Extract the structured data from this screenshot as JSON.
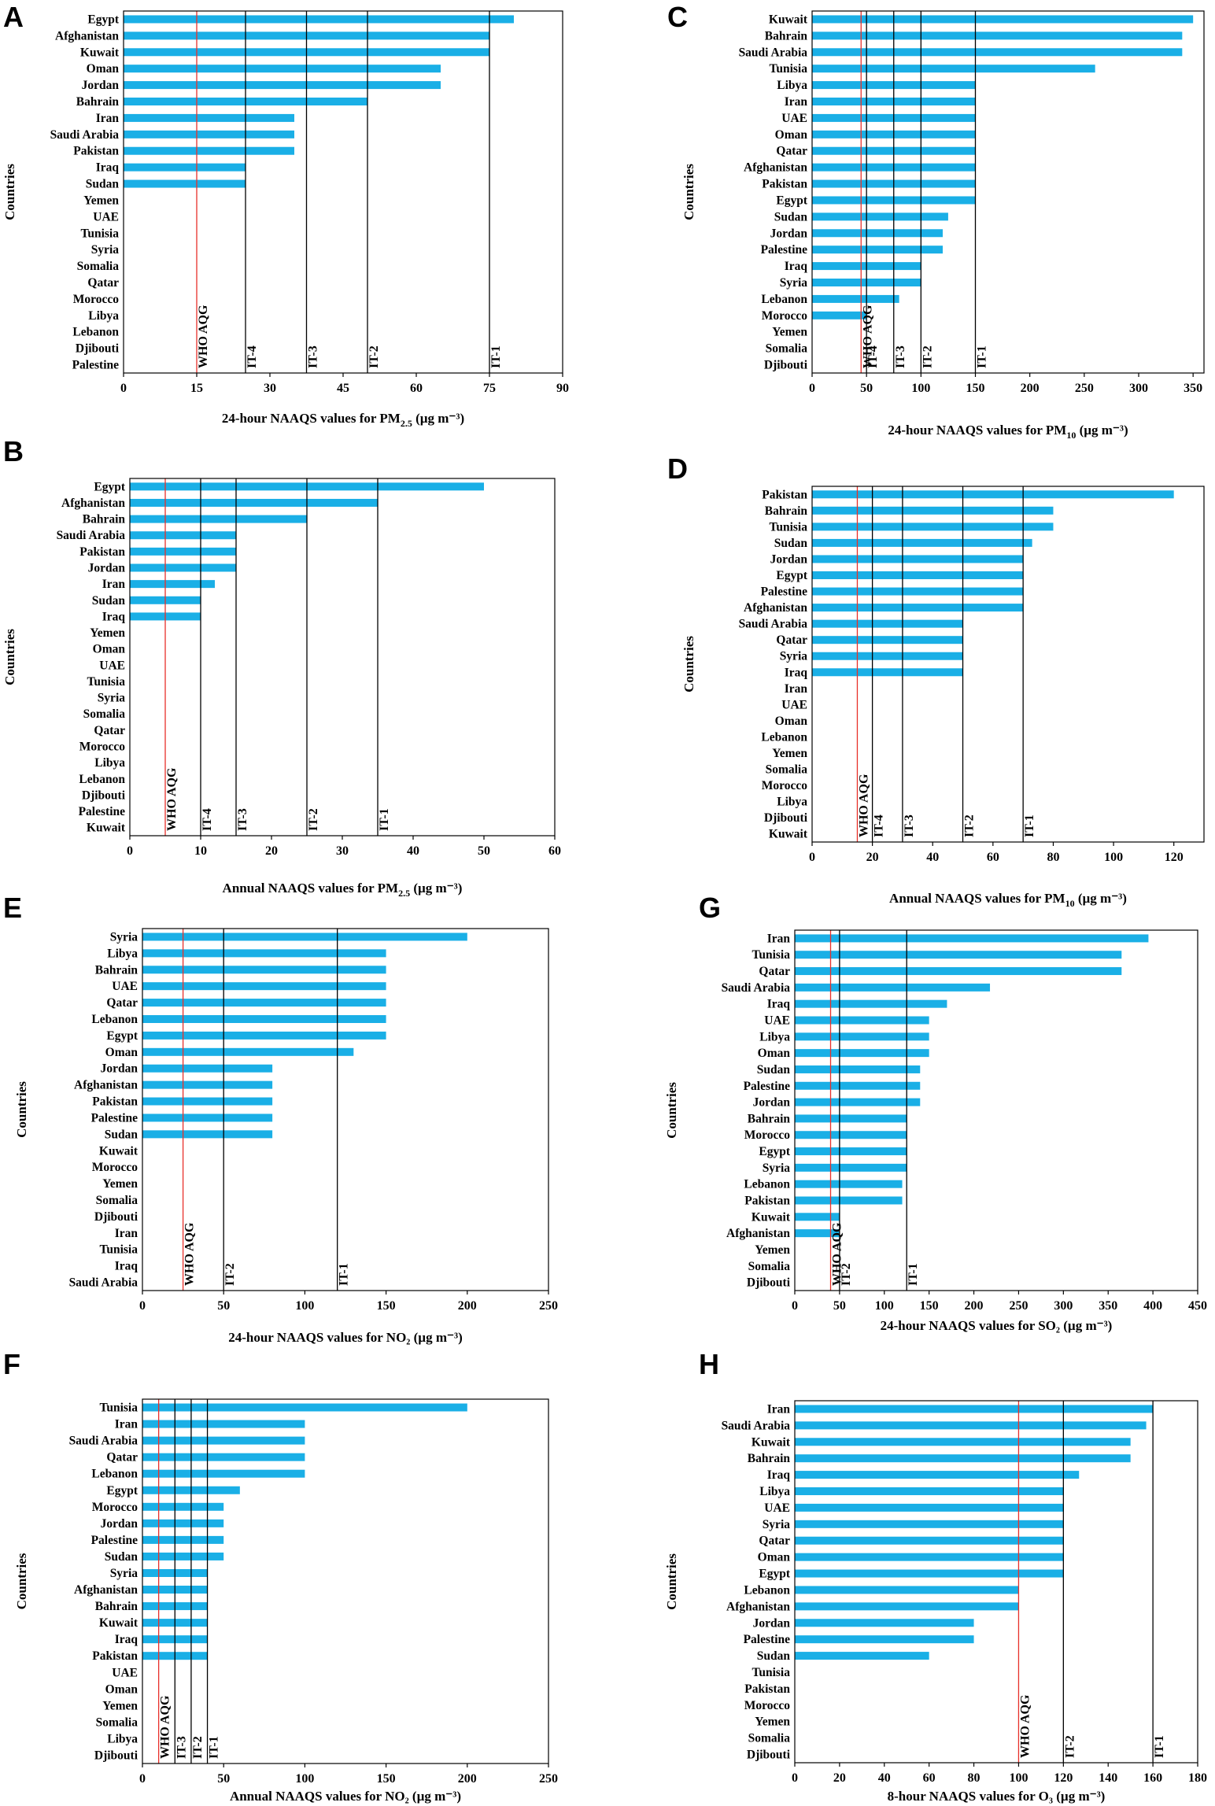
{
  "colors": {
    "bar": "#1AAFE6",
    "who_line": "#E8302A",
    "it_line": "#000000",
    "axis": "#000000"
  },
  "chart_data": [
    {
      "id": "A",
      "type": "bar",
      "orientation": "horizontal",
      "categories": [
        "Egypt",
        "Afghanistan",
        "Kuwait",
        "Oman",
        "Jordan",
        "Bahrain",
        "Iran",
        "Saudi Arabia",
        "Pakistan",
        "Iraq",
        "Sudan",
        "Yemen",
        "UAE",
        "Tunisia",
        "Syria",
        "Somalia",
        "Qatar",
        "Morocco",
        "Libya",
        "Lebanon",
        "Djibouti",
        "Palestine"
      ],
      "values": [
        80,
        75,
        75,
        65,
        65,
        50,
        35,
        35,
        35,
        25,
        25,
        0,
        0,
        0,
        0,
        0,
        0,
        0,
        0,
        0,
        0,
        0
      ],
      "xlim": [
        0,
        90
      ],
      "xticks": [
        0,
        15,
        30,
        45,
        60,
        75,
        90
      ],
      "xlabel": {
        "main": "24-hour NAAQS values for PM",
        "sub": "2.5",
        "unit": " (µg m⁻³)"
      },
      "ylabel": "Countries",
      "references": [
        {
          "label": "WHO AQG",
          "value": 15,
          "kind": "who"
        },
        {
          "label": "IT-4",
          "value": 25,
          "kind": "it"
        },
        {
          "label": "IT-3",
          "value": 37.5,
          "kind": "it"
        },
        {
          "label": "IT-2",
          "value": 50,
          "kind": "it"
        },
        {
          "label": "IT-1",
          "value": 75,
          "kind": "it"
        }
      ]
    },
    {
      "id": "C",
      "type": "bar",
      "orientation": "horizontal",
      "categories": [
        "Kuwait",
        "Bahrain",
        "Saudi Arabia",
        "Tunisia",
        "Libya",
        "Iran",
        "UAE",
        "Oman",
        "Qatar",
        "Afghanistan",
        "Pakistan",
        "Egypt",
        "Sudan",
        "Jordan",
        "Palestine",
        "Iraq",
        "Syria",
        "Lebanon",
        "Morocco",
        "Yemen",
        "Somalia",
        "Djibouti"
      ],
      "values": [
        350,
        340,
        340,
        260,
        150,
        150,
        150,
        150,
        150,
        150,
        150,
        150,
        125,
        120,
        120,
        100,
        100,
        80,
        50,
        0,
        0,
        0
      ],
      "xlim": [
        0,
        360
      ],
      "xticks": [
        0,
        50,
        100,
        150,
        200,
        250,
        300,
        350
      ],
      "xlabel": {
        "main": "24-hour NAAQS values for PM",
        "sub": "10",
        "unit": " (µg m⁻³)"
      },
      "ylabel": "Countries",
      "references": [
        {
          "label": "WHO AQG",
          "value": 45,
          "kind": "who"
        },
        {
          "label": "IT-4",
          "value": 50,
          "kind": "it"
        },
        {
          "label": "IT-3",
          "value": 75,
          "kind": "it"
        },
        {
          "label": "IT-2",
          "value": 100,
          "kind": "it"
        },
        {
          "label": "IT-1",
          "value": 150,
          "kind": "it"
        }
      ]
    },
    {
      "id": "B",
      "type": "bar",
      "orientation": "horizontal",
      "categories": [
        "Egypt",
        "Afghanistan",
        "Bahrain",
        "Saudi Arabia",
        "Pakistan",
        "Jordan",
        "Iran",
        "Sudan",
        "Iraq",
        "Yemen",
        "Oman",
        "UAE",
        "Tunisia",
        "Syria",
        "Somalia",
        "Qatar",
        "Morocco",
        "Libya",
        "Lebanon",
        "Djibouti",
        "Palestine",
        "Kuwait"
      ],
      "values": [
        50,
        35,
        25,
        15,
        15,
        15,
        12,
        10,
        10,
        0,
        0,
        0,
        0,
        0,
        0,
        0,
        0,
        0,
        0,
        0,
        0,
        0
      ],
      "xlim": [
        0,
        60
      ],
      "xticks": [
        0,
        10,
        20,
        30,
        40,
        50,
        60
      ],
      "xlabel": {
        "main": "Annual NAAQS values for PM",
        "sub": "2.5",
        "unit": " (µg m⁻³)"
      },
      "ylabel": "Countries",
      "references": [
        {
          "label": "WHO AQG",
          "value": 5,
          "kind": "who"
        },
        {
          "label": "IT-4",
          "value": 10,
          "kind": "it"
        },
        {
          "label": "IT-3",
          "value": 15,
          "kind": "it"
        },
        {
          "label": "IT-2",
          "value": 25,
          "kind": "it"
        },
        {
          "label": "IT-1",
          "value": 35,
          "kind": "it"
        }
      ]
    },
    {
      "id": "D",
      "type": "bar",
      "orientation": "horizontal",
      "categories": [
        "Pakistan",
        "Bahrain",
        "Tunisia",
        "Sudan",
        "Jordan",
        "Egypt",
        "Palestine",
        "Afghanistan",
        "Saudi Arabia",
        "Qatar",
        "Syria",
        "Iraq",
        "Iran",
        "UAE",
        "Oman",
        "Lebanon",
        "Yemen",
        "Somalia",
        "Morocco",
        "Libya",
        "Djibouti",
        "Kuwait"
      ],
      "values": [
        120,
        80,
        80,
        73,
        70,
        70,
        70,
        70,
        50,
        50,
        50,
        50,
        0,
        0,
        0,
        0,
        0,
        0,
        0,
        0,
        0,
        0
      ],
      "xlim": [
        0,
        130
      ],
      "xticks": [
        0,
        20,
        40,
        60,
        80,
        100,
        120
      ],
      "xlabel": {
        "main": "Annual NAAQS values for PM",
        "sub": "10",
        "unit": " (µg m⁻³)"
      },
      "ylabel": "Countries",
      "references": [
        {
          "label": "WHO AQG",
          "value": 15,
          "kind": "who"
        },
        {
          "label": "IT-4",
          "value": 20,
          "kind": "it"
        },
        {
          "label": "IT-3",
          "value": 30,
          "kind": "it"
        },
        {
          "label": "IT-2",
          "value": 50,
          "kind": "it"
        },
        {
          "label": "IT-1",
          "value": 70,
          "kind": "it"
        }
      ]
    },
    {
      "id": "E",
      "type": "bar",
      "orientation": "horizontal",
      "categories": [
        "Syria",
        "Libya",
        "Bahrain",
        "UAE",
        "Qatar",
        "Lebanon",
        "Egypt",
        "Oman",
        "Jordan",
        "Afghanistan",
        "Pakistan",
        "Palestine",
        "Sudan",
        "Kuwait",
        "Morocco",
        "Yemen",
        "Somalia",
        "Djibouti",
        "Iran",
        "Tunisia",
        "Iraq",
        "Saudi Arabia"
      ],
      "values": [
        200,
        150,
        150,
        150,
        150,
        150,
        150,
        130,
        80,
        80,
        80,
        80,
        80,
        0,
        0,
        0,
        0,
        0,
        0,
        0,
        0,
        0
      ],
      "xlim": [
        0,
        250
      ],
      "xticks": [
        0,
        50,
        100,
        150,
        200,
        250
      ],
      "xlabel": {
        "main": "24-hour NAAQS values for NO₂",
        "sub": "",
        "unit": " (µg m⁻³)"
      },
      "ylabel": "Countries",
      "references": [
        {
          "label": "WHO AQG",
          "value": 25,
          "kind": "who"
        },
        {
          "label": "IT-2",
          "value": 50,
          "kind": "it"
        },
        {
          "label": "IT-1",
          "value": 120,
          "kind": "it"
        }
      ]
    },
    {
      "id": "G",
      "type": "bar",
      "orientation": "horizontal",
      "categories": [
        "Iran",
        "Tunisia",
        "Qatar",
        "Saudi Arabia",
        "Iraq",
        "UAE",
        "Libya",
        "Oman",
        "Sudan",
        "Palestine",
        "Jordan",
        "Bahrain",
        "Morocco",
        "Egypt",
        "Syria",
        "Lebanon",
        "Pakistan",
        "Kuwait",
        "Afghanistan",
        "Yemen",
        "Somalia",
        "Djibouti"
      ],
      "values": [
        395,
        365,
        365,
        218,
        170,
        150,
        150,
        150,
        140,
        140,
        140,
        125,
        125,
        125,
        125,
        120,
        120,
        50,
        50,
        0,
        0,
        0
      ],
      "xlim": [
        0,
        450
      ],
      "xticks": [
        0,
        50,
        100,
        150,
        200,
        250,
        300,
        350,
        400,
        450
      ],
      "xlabel": {
        "main": "24-hour NAAQS values for SO₂",
        "sub": "",
        "unit": " (µg m⁻³)"
      },
      "ylabel": "Countries",
      "references": [
        {
          "label": "WHO AQG",
          "value": 40,
          "kind": "who"
        },
        {
          "label": "IT-2",
          "value": 50,
          "kind": "it"
        },
        {
          "label": "IT-1",
          "value": 125,
          "kind": "it"
        }
      ]
    },
    {
      "id": "F",
      "type": "bar",
      "orientation": "horizontal",
      "categories": [
        "Tunisia",
        "Iran",
        "Saudi Arabia",
        "Qatar",
        "Lebanon",
        "Egypt",
        "Morocco",
        "Jordan",
        "Palestine",
        "Sudan",
        "Syria",
        "Afghanistan",
        "Bahrain",
        "Kuwait",
        "Iraq",
        "Pakistan",
        "UAE",
        "Oman",
        "Yemen",
        "Somalia",
        "Libya",
        "Djibouti"
      ],
      "values": [
        200,
        100,
        100,
        100,
        100,
        60,
        50,
        50,
        50,
        50,
        40,
        40,
        40,
        40,
        40,
        40,
        0,
        0,
        0,
        0,
        0,
        0
      ],
      "xlim": [
        0,
        250
      ],
      "xticks": [
        0,
        50,
        100,
        150,
        200,
        250
      ],
      "xlabel": {
        "main": "Annual NAAQS values for NO₂",
        "sub": "",
        "unit": " (µg m⁻³)"
      },
      "ylabel": "Countries",
      "references": [
        {
          "label": "WHO AQG",
          "value": 10,
          "kind": "who"
        },
        {
          "label": "IT-3",
          "value": 20,
          "kind": "it"
        },
        {
          "label": "IT-2",
          "value": 30,
          "kind": "it"
        },
        {
          "label": "IT-1",
          "value": 40,
          "kind": "it"
        }
      ]
    },
    {
      "id": "H",
      "type": "bar",
      "orientation": "horizontal",
      "categories": [
        "Iran",
        "Saudi Arabia",
        "Kuwait",
        "Bahrain",
        "Iraq",
        "Libya",
        "UAE",
        "Syria",
        "Qatar",
        "Oman",
        "Egypt",
        "Lebanon",
        "Afghanistan",
        "Jordan",
        "Palestine",
        "Sudan",
        "Tunisia",
        "Pakistan",
        "Morocco",
        "Yemen",
        "Somalia",
        "Djibouti"
      ],
      "values": [
        160,
        157,
        150,
        150,
        127,
        120,
        120,
        120,
        120,
        120,
        120,
        100,
        100,
        80,
        80,
        60,
        0,
        0,
        0,
        0,
        0,
        0
      ],
      "xlim": [
        0,
        180
      ],
      "xticks": [
        0,
        20,
        40,
        60,
        80,
        100,
        120,
        140,
        160,
        180
      ],
      "xlabel": {
        "main": "8-hour NAAQS values for O₃",
        "sub": "",
        "unit": " (µg m⁻³)"
      },
      "ylabel": "Countries",
      "references": [
        {
          "label": "WHO AQG",
          "value": 100,
          "kind": "who"
        },
        {
          "label": "IT-2",
          "value": 120,
          "kind": "it"
        },
        {
          "label": "IT-1",
          "value": 160,
          "kind": "it"
        }
      ]
    }
  ]
}
